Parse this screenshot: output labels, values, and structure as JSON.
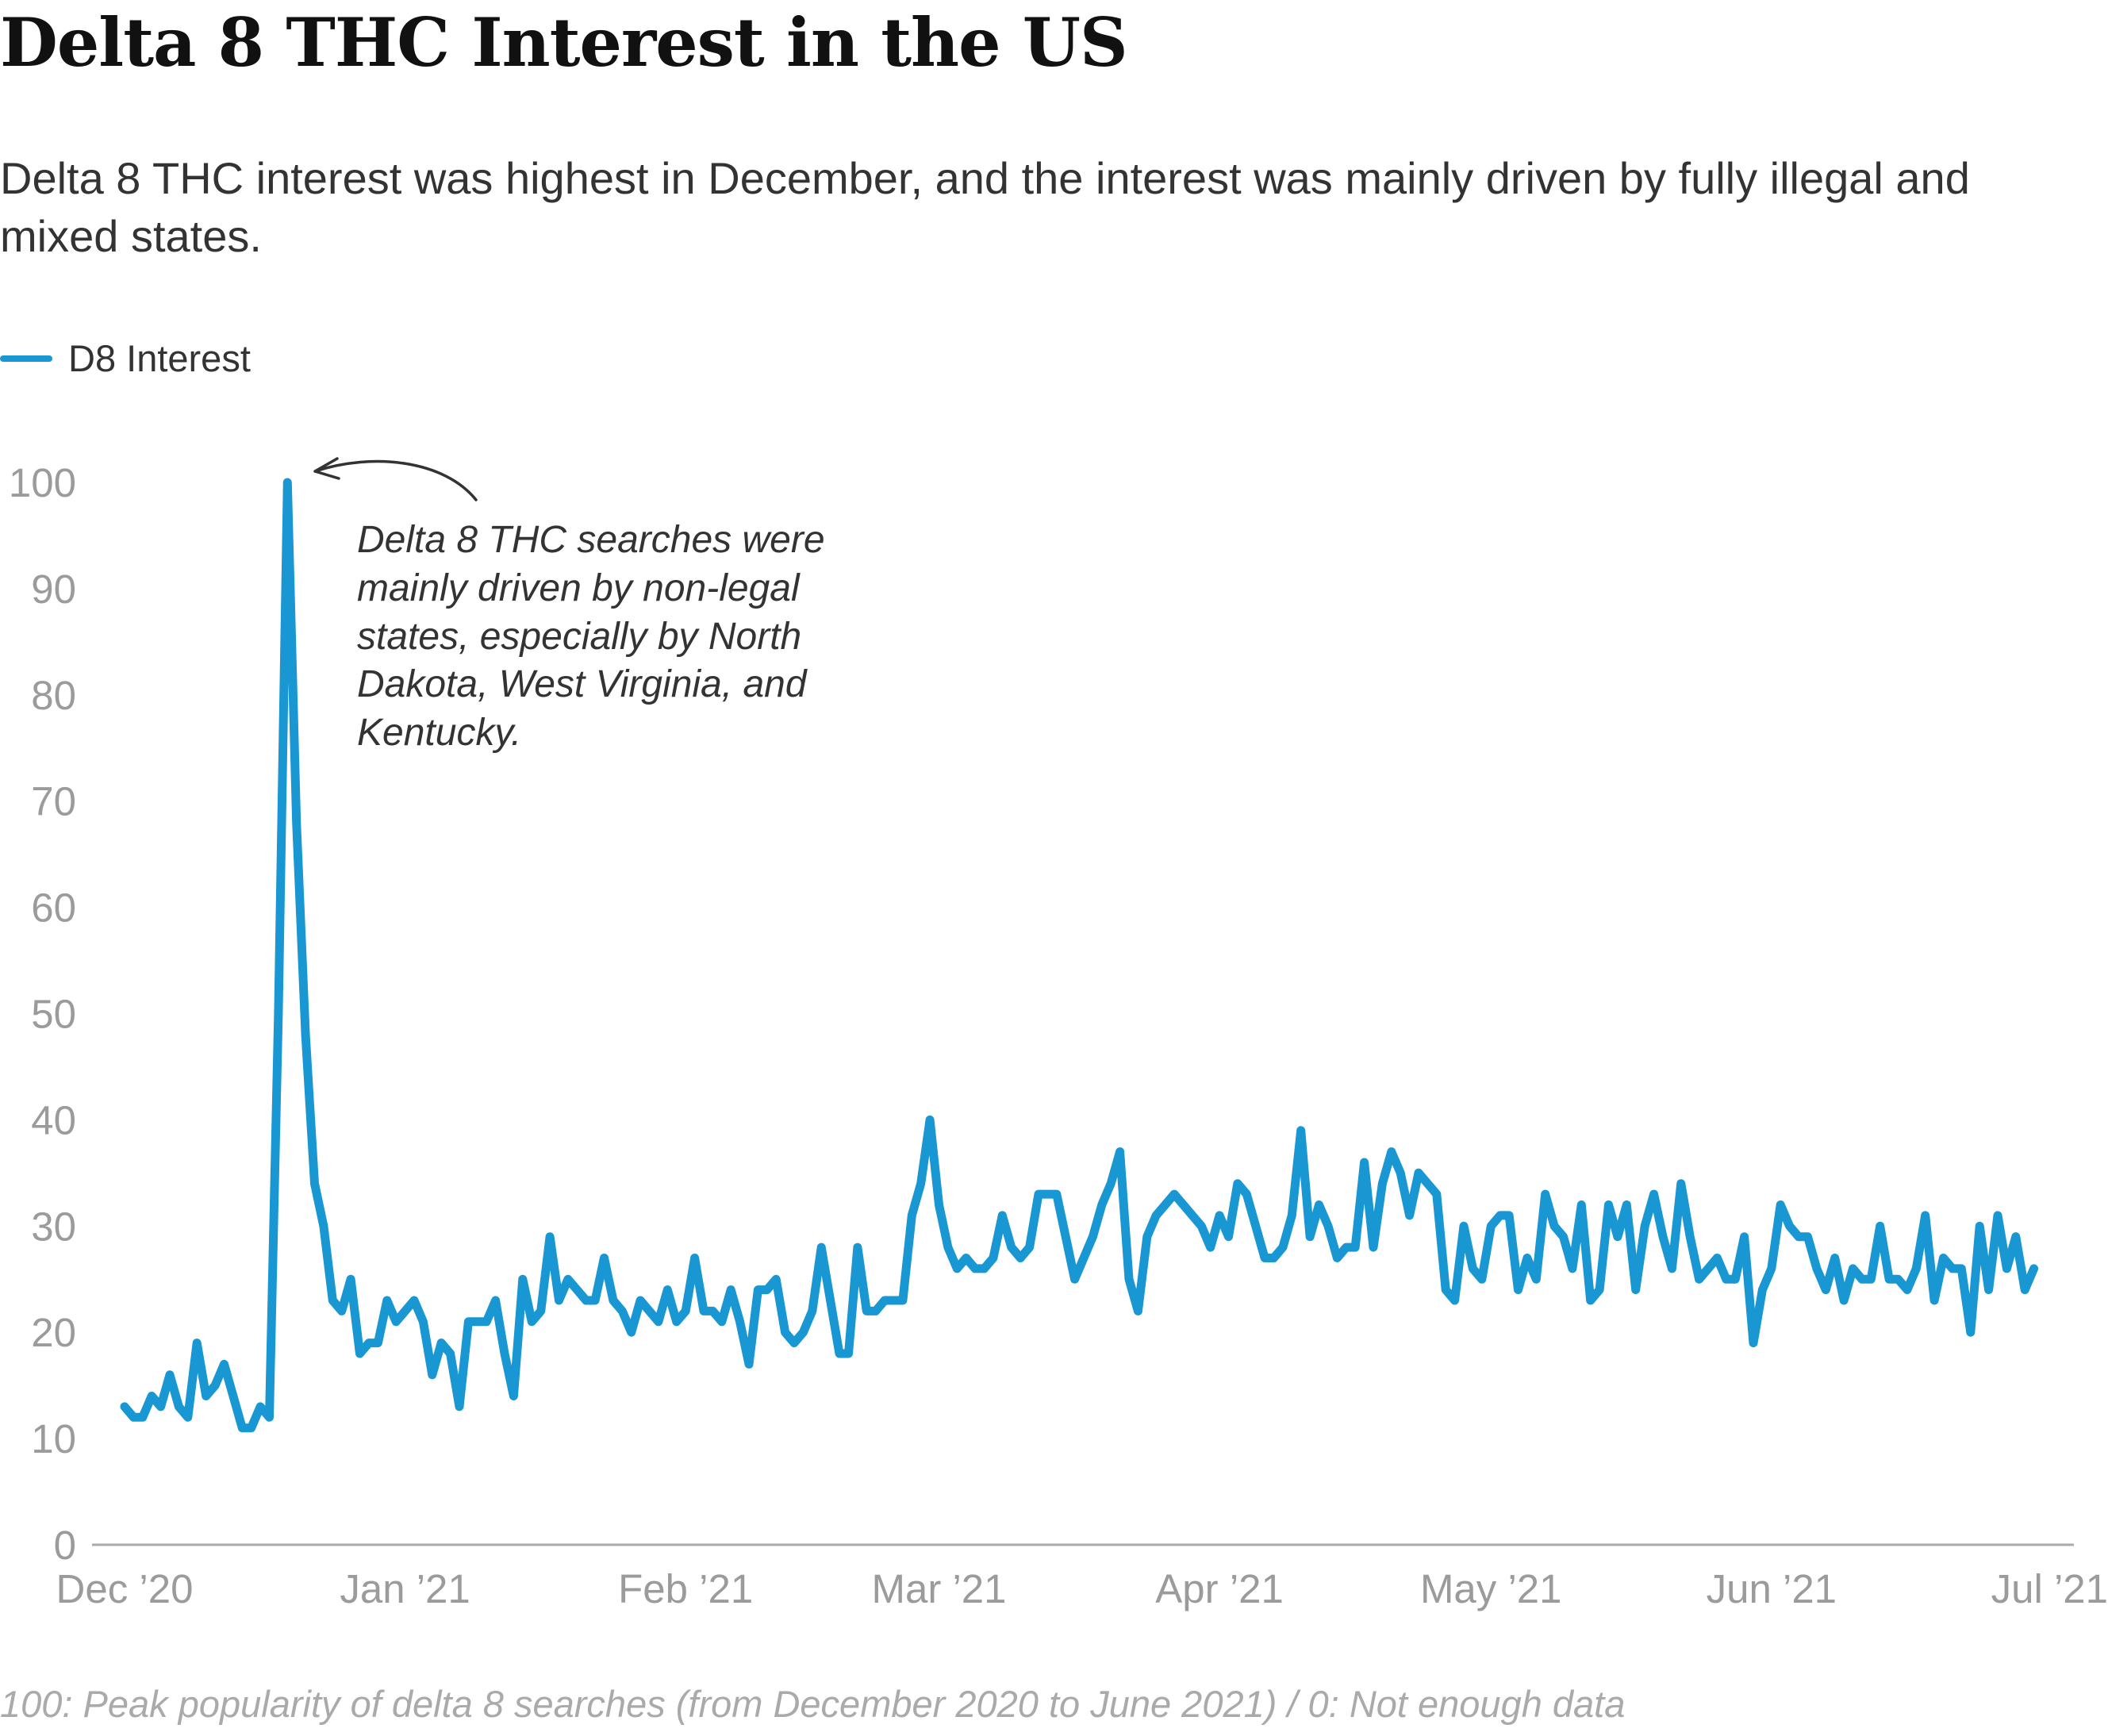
{
  "title": "Delta 8 THC Interest in the US",
  "subtitle": "Delta 8 THC interest was highest in December, and the interest was mainly driven by fully illegal and mixed states.",
  "footer": "100: Peak popularity of delta 8 searches (from December 2020 to June 2021) / 0: Not enough data",
  "chart_data": {
    "type": "line",
    "title": "Delta 8 THC Interest in the US",
    "xlabel": "",
    "ylabel": "",
    "ylim": [
      0,
      100
    ],
    "yticks": [
      "0",
      "10",
      "20",
      "30",
      "40",
      "50",
      "60",
      "70",
      "80",
      "90",
      "100"
    ],
    "xticks": [
      {
        "label": "Dec ’20",
        "day": 0
      },
      {
        "label": "Jan ’21",
        "day": 31
      },
      {
        "label": "Feb ’21",
        "day": 62
      },
      {
        "label": "Mar ’21",
        "day": 90
      },
      {
        "label": "Apr ’21",
        "day": 121
      },
      {
        "label": "May ’21",
        "day": 151
      },
      {
        "label": "Jun ’21",
        "day": 182
      },
      {
        "label": "Jul ’21",
        "day": 212
      }
    ],
    "x_range_days": [
      0,
      212
    ],
    "color": "#1897d3",
    "legend": {
      "placement": "top-left",
      "entries": [
        "D8 Interest"
      ]
    },
    "series": [
      {
        "name": "D8 Interest",
        "values": [
          13,
          12,
          12,
          14,
          13,
          16,
          13,
          12,
          19,
          14,
          15,
          17,
          14,
          11,
          11,
          13,
          12,
          50,
          100,
          68,
          48,
          34,
          30,
          23,
          22,
          25,
          18,
          19,
          19,
          23,
          21,
          22,
          23,
          21,
          16,
          19,
          18,
          13,
          21,
          21,
          21,
          23,
          18,
          14,
          25,
          21,
          22,
          29,
          23,
          25,
          24,
          23,
          23,
          27,
          23,
          22,
          20,
          23,
          22,
          21,
          24,
          21,
          22,
          27,
          22,
          22,
          21,
          24,
          21,
          17,
          24,
          24,
          25,
          20,
          19,
          20,
          22,
          28,
          23,
          18,
          18,
          28,
          22,
          22,
          23,
          23,
          23,
          31,
          34,
          40,
          32,
          28,
          26,
          27,
          26,
          26,
          27,
          31,
          28,
          27,
          28,
          33,
          33,
          33,
          29,
          25,
          27,
          29,
          32,
          34,
          37,
          25,
          22,
          29,
          31,
          32,
          33,
          32,
          31,
          30,
          28,
          31,
          29,
          34,
          33,
          30,
          27,
          27,
          28,
          31,
          39,
          29,
          32,
          30,
          27,
          28,
          28,
          36,
          28,
          34,
          37,
          35,
          31,
          35,
          34,
          33,
          24,
          23,
          30,
          26,
          25,
          30,
          31,
          31,
          24,
          27,
          25,
          33,
          30,
          29,
          26,
          32,
          23,
          24,
          32,
          29,
          32,
          24,
          30,
          33,
          29,
          26,
          34,
          29,
          25,
          26,
          27,
          25,
          25,
          29,
          19,
          24,
          26,
          32,
          30,
          29,
          29,
          26,
          24,
          27,
          23,
          26,
          25,
          25,
          30,
          25,
          25,
          24,
          26,
          31,
          23,
          27,
          26,
          26,
          20,
          30,
          24,
          31,
          26,
          29,
          24,
          26
        ]
      }
    ],
    "annotation": {
      "lines": [
        "Delta 8 THC searches were",
        "mainly driven by non-legal",
        "states, especially by North",
        "Dakota, West Virginia, and",
        "Kentucky."
      ],
      "points_to_value": 100
    }
  }
}
